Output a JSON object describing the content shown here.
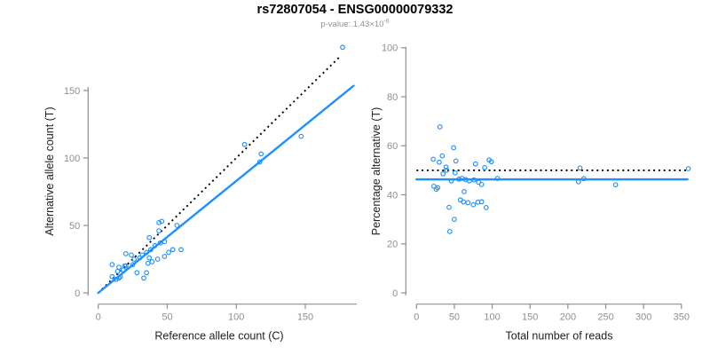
{
  "header": {
    "title": "rs72807054 - ENSG00000079332",
    "subtitle_base": "p-value: 1.43×10",
    "subtitle_exp": "-6"
  },
  "colors": {
    "point": "#1E90FF",
    "fit_line": "#1E90FF",
    "reference_line": "#000000",
    "axis": "#8f8f8f",
    "tick_label": "#8f8f8f",
    "axis_title": "#222222",
    "title": "#000000",
    "subtitle": "#919191"
  },
  "chart_data": [
    {
      "type": "scatter",
      "name": "allele-counts-scatter",
      "xlabel": "Reference allele count (C)",
      "ylabel": "Alternative allele count (T)",
      "xlim": [
        0,
        186
      ],
      "ylim": [
        0,
        182
      ],
      "xticks": [
        0,
        50,
        100,
        150
      ],
      "yticks": [
        0,
        50,
        100,
        150
      ],
      "grid": false,
      "legend": "none",
      "x": [
        10,
        10,
        14,
        15,
        20,
        24,
        19,
        20,
        26,
        44,
        46,
        37,
        44,
        25,
        30,
        32,
        35,
        38,
        41,
        45,
        48,
        18,
        57,
        15,
        13,
        16,
        37,
        36,
        39,
        43,
        48,
        51,
        54,
        60,
        28,
        35,
        33,
        106,
        117,
        118,
        147,
        177
      ],
      "y": [
        21,
        12,
        16,
        19,
        29,
        28,
        20,
        20,
        25,
        52,
        53,
        41,
        46,
        21,
        26,
        28,
        30,
        32,
        35,
        37,
        38,
        17,
        50,
        11,
        10,
        12,
        26,
        22,
        23,
        25,
        27,
        30,
        32,
        32,
        15,
        15,
        11,
        110,
        97,
        103,
        116,
        182
      ],
      "lines": [
        {
          "name": "identity",
          "style": "dotted",
          "color": "#000000",
          "x1": 0,
          "y1": 0,
          "x2": 176,
          "y2": 176
        },
        {
          "name": "fit",
          "style": "solid",
          "color": "#1E90FF",
          "x1": 0,
          "y1": 0,
          "x2": 185,
          "y2": 153.5
        }
      ]
    },
    {
      "type": "scatter",
      "name": "percentage-vs-reads-scatter",
      "xlabel": "Total number of reads",
      "ylabel": "Percentage alternative (T)",
      "xlim": [
        0,
        376
      ],
      "ylim": [
        0,
        100
      ],
      "xticks": [
        0,
        50,
        100,
        150,
        200,
        250,
        300,
        350
      ],
      "yticks": [
        0,
        20,
        40,
        60,
        80,
        100
      ],
      "grid": false,
      "legend": "none",
      "x": [
        31,
        22,
        30,
        34,
        49,
        52,
        39,
        40,
        51,
        96,
        99,
        78,
        90,
        46,
        56,
        60,
        65,
        70,
        76,
        82,
        86,
        35,
        107,
        26,
        23,
        28,
        63,
        58,
        62,
        68,
        75,
        81,
        86,
        92,
        43,
        50,
        44,
        216,
        214,
        221,
        263,
        359
      ],
      "y": [
        67.7,
        54.5,
        53.3,
        55.9,
        59.2,
        53.8,
        51.3,
        50,
        49,
        54.2,
        53.5,
        52.6,
        51.1,
        45.7,
        46.4,
        46.7,
        46.2,
        45.7,
        46.1,
        45.1,
        44.2,
        48.6,
        46.7,
        42.3,
        43.5,
        42.9,
        41.3,
        37.9,
        37.1,
        36.8,
        36,
        37,
        37.2,
        34.8,
        34.9,
        30,
        25,
        50.9,
        45.3,
        46.6,
        44.1,
        50.7
      ],
      "lines": [
        {
          "name": "expected-50pct",
          "style": "dotted",
          "color": "#000000",
          "x1": 0,
          "y1": 50,
          "x2": 358,
          "y2": 50
        },
        {
          "name": "fitted-mean",
          "style": "solid",
          "color": "#1E90FF",
          "x1": 0,
          "y1": 46.3,
          "x2": 358,
          "y2": 46.3
        }
      ]
    }
  ]
}
